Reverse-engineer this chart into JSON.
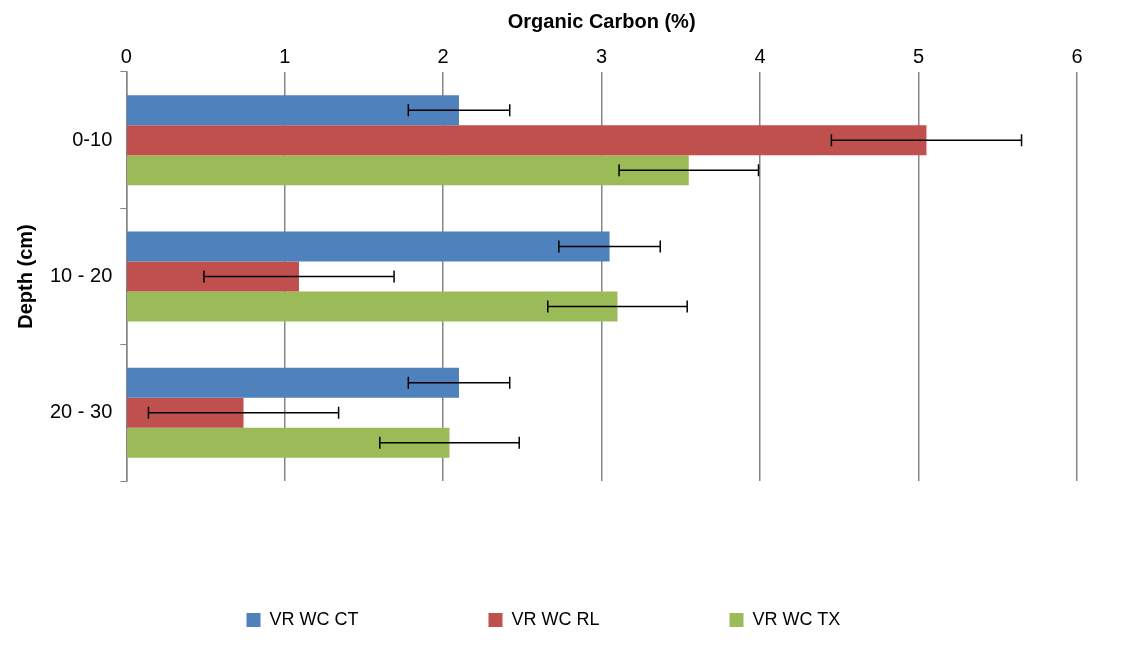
{
  "chart_data": {
    "type": "bar",
    "orientation": "horizontal",
    "xlabel": "Organic Carbon (%)",
    "ylabel": "Depth (cm)",
    "categories": [
      "0-10",
      "10 - 20",
      "20 - 30"
    ],
    "series": [
      {
        "name": "VR WC CT",
        "color": "#4f81bd",
        "values": [
          2.1,
          3.05,
          2.1
        ],
        "errors": [
          0.32,
          0.32,
          0.32
        ]
      },
      {
        "name": "VR WC RL",
        "color": "#c0504d",
        "values": [
          5.05,
          1.09,
          0.74
        ],
        "errors": [
          0.6,
          0.6,
          0.6
        ]
      },
      {
        "name": "VR WC TX",
        "color": "#9bbb59",
        "values": [
          3.55,
          3.1,
          2.04
        ],
        "errors": [
          0.44,
          0.44,
          0.44
        ]
      }
    ],
    "xlim": [
      0,
      6
    ],
    "xticks": [
      0,
      1,
      2,
      3,
      4,
      5,
      6
    ],
    "grid": "x",
    "legend": "bottom"
  }
}
